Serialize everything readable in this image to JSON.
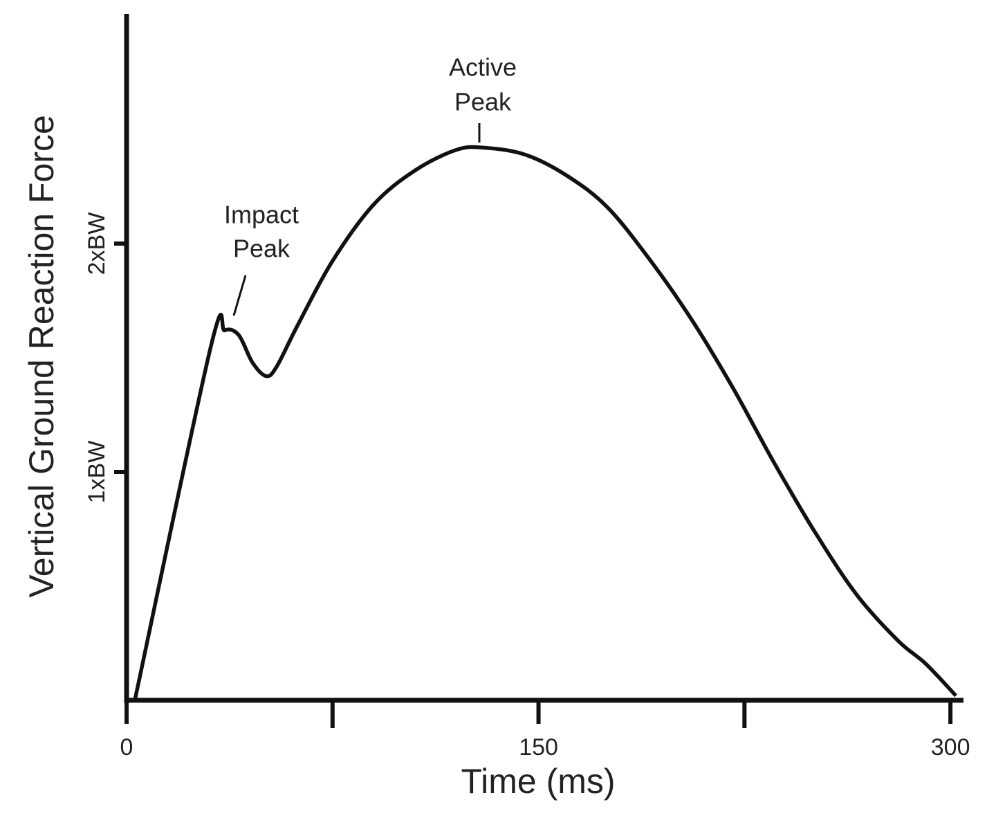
{
  "chart_data": {
    "type": "line",
    "xlabel": "Time (ms)",
    "ylabel": "Vertical Ground Reaction Force",
    "xlim": [
      0,
      304
    ],
    "ylim": [
      0,
      3
    ],
    "xticks": [
      0,
      150,
      300
    ],
    "xminor_ticks": [
      75,
      225
    ],
    "yticks": [
      {
        "value": 1,
        "label": "1xBW"
      },
      {
        "value": 2,
        "label": "2xBW"
      }
    ],
    "annotations": [
      {
        "lines": [
          "Impact",
          "Peak"
        ]
      },
      {
        "lines": [
          "Active",
          "Peak"
        ]
      }
    ],
    "series": [
      {
        "color": "#111111",
        "x": [
          3,
          30.7,
          35.7,
          40.8,
          45.8,
          50.8,
          54.6,
          62.2,
          74.8,
          89.9,
          105,
          120,
          130,
          145,
          160,
          175,
          190.5,
          205.6,
          220.7,
          235.8,
          251,
          266,
          281,
          291,
          302
        ],
        "values": [
          0,
          1.55,
          1.62,
          1.6,
          1.48,
          1.42,
          1.46,
          1.64,
          1.92,
          2.17,
          2.32,
          2.41,
          2.42,
          2.39,
          2.3,
          2.16,
          1.93,
          1.67,
          1.37,
          1.04,
          0.73,
          0.46,
          0.26,
          0.16,
          0.02
        ]
      }
    ]
  }
}
